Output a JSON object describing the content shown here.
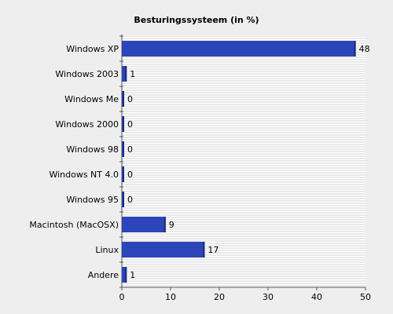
{
  "chart_data": {
    "type": "bar",
    "orientation": "horizontal",
    "title": "Besturingssysteem (in %)",
    "xlabel": "",
    "ylabel": "",
    "categories": [
      "Windows XP",
      "Windows 2003",
      "Windows Me",
      "Windows 2000",
      "Windows 98",
      "Windows NT 4.0",
      "Windows 95",
      "Macintosh (MacOSX)",
      "Linux",
      "Andere"
    ],
    "values": [
      48,
      1,
      0,
      0,
      0,
      0,
      0,
      9,
      17,
      1
    ],
    "value_labels": [
      "48",
      "1",
      "0",
      "0",
      "0",
      "0",
      "0",
      "9",
      "17",
      "1"
    ],
    "xlim": [
      0,
      50
    ],
    "xticks": [
      "0",
      "10",
      "20",
      "30",
      "40",
      "50"
    ],
    "grid": "horizontal-lines",
    "legend": "none",
    "colors": {
      "bar": "#2c45b8",
      "bar_edge": "#1a2a7a",
      "grid": "#ffffff",
      "plot_bg": "#e6e6e6",
      "page_bg": "#eeeeee"
    }
  }
}
